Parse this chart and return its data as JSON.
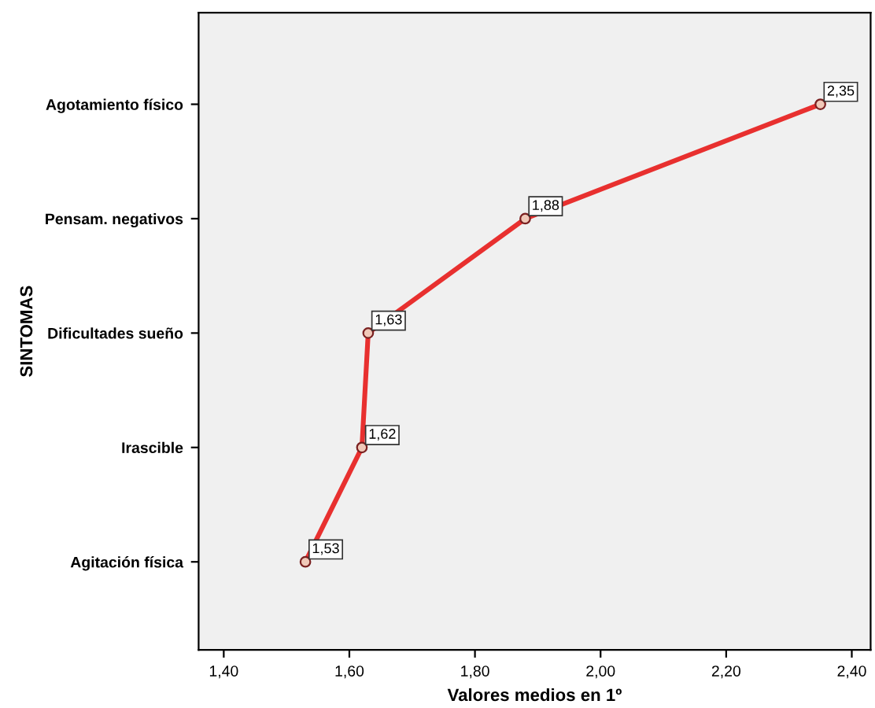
{
  "chart_data": {
    "type": "line",
    "orientation": "horizontal",
    "xlabel": "Valores medios en 1º",
    "ylabel": "SINTOMAS",
    "categories": [
      "Agotamiento físico",
      "Pensam. negativos",
      "Dificultades sueño",
      "Irascible",
      "Agitación física"
    ],
    "series": [
      {
        "color": "#e8302f",
        "values": [
          2.35,
          1.88,
          1.63,
          1.62,
          1.53
        ],
        "value_labels": [
          "2,35",
          "1,88",
          "1,63",
          "1,62",
          "1,53"
        ]
      }
    ],
    "xlim": [
      1.36,
      2.43
    ],
    "xticks": [
      {
        "value": 1.4,
        "label": "1,40"
      },
      {
        "value": 1.6,
        "label": "1,60"
      },
      {
        "value": 1.8,
        "label": "1,80"
      },
      {
        "value": 2.0,
        "label": "2,00"
      },
      {
        "value": 2.2,
        "label": "2,20"
      },
      {
        "value": 2.4,
        "label": "2,40"
      }
    ],
    "marker": "circle",
    "line_style": "solid",
    "grid": false,
    "legend": false
  }
}
